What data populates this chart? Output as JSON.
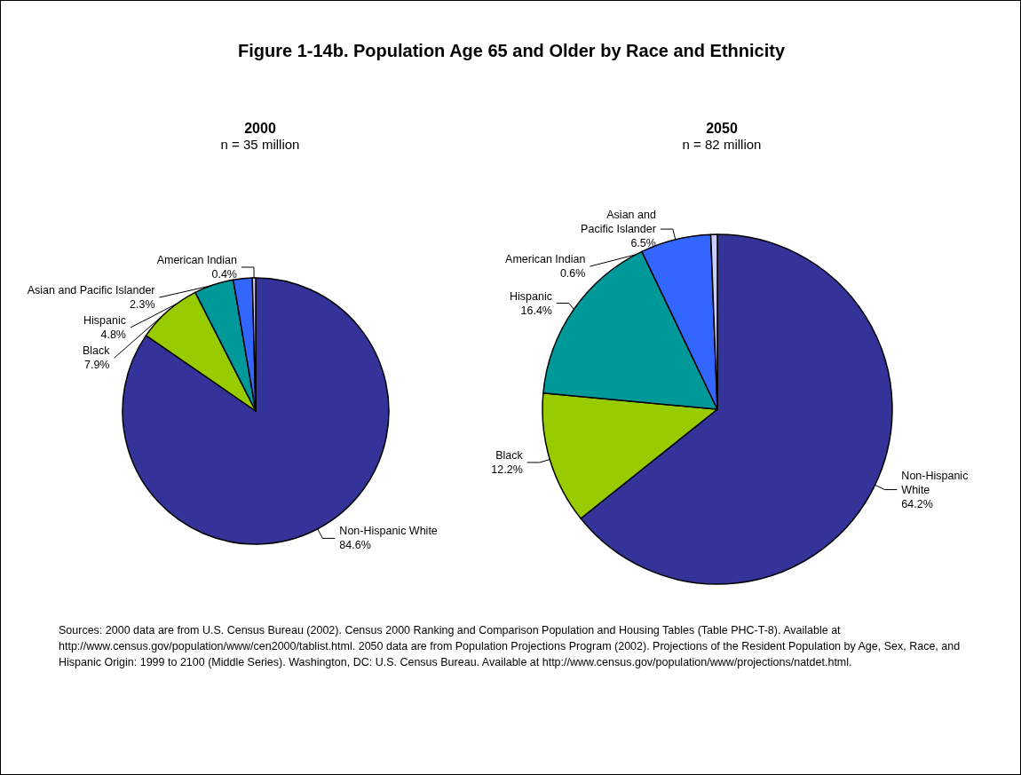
{
  "chart_data": [
    {
      "type": "pie",
      "title": "2000",
      "subtitle": "n = 35 million",
      "annotations": [
        "Figure 1-14b. Population Age 65 and Older by Race and Ethnicity"
      ],
      "categories": [
        "Non-Hispanic White",
        "Black",
        "Hispanic",
        "Asian and Pacific Islander",
        "American Indian"
      ],
      "values": [
        84.6,
        7.9,
        4.8,
        2.3,
        0.4
      ],
      "value_labels": [
        "84.6%",
        "7.9%",
        "4.8%",
        "2.3%",
        "0.4%"
      ],
      "colors": [
        "#333399",
        "#99cc00",
        "#009999",
        "#3366ff",
        "#ccccff"
      ],
      "legend": false
    },
    {
      "type": "pie",
      "title": "2050",
      "subtitle": "n = 82 million",
      "annotations": [
        "Sources: 2000 data are from U.S. Census Bureau (2002). Census 2000 Ranking and Comparison Population and Housing Tables (Table PHC-T-8). Available at http://www.census.gov/population/www/cen2000/tablist.html. 2050 data are from Population Projections Program (2002). Projections of the Resident Population by Age, Sex, Race, and Hispanic Origin: 1999 to 2100 (Middle Series). Washington, DC: U.S. Census Bureau. Available at http://www.census.gov/population/www/projections/natdet.html."
      ],
      "categories": [
        "Non-Hispanic\nWhite",
        "Black",
        "Hispanic",
        "Asian and\nPacific Islander",
        "American Indian"
      ],
      "values": [
        64.2,
        12.2,
        16.4,
        6.5,
        0.6
      ],
      "value_labels": [
        "64.2%",
        "12.2%",
        "16.4%",
        "6.5%",
        "0.6%"
      ],
      "colors": [
        "#333399",
        "#99cc00",
        "#009999",
        "#3366ff",
        "#ccccff"
      ],
      "legend": false
    }
  ]
}
